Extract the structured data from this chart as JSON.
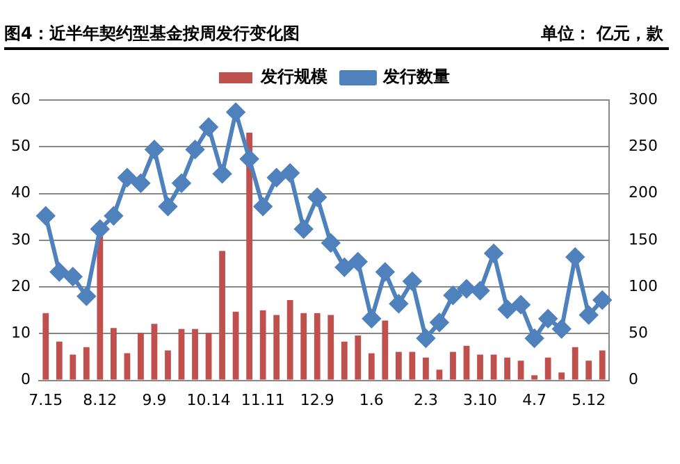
{
  "chart_data": {
    "type": "bar",
    "title": "图4：近半年契约型基金按周发行变化图",
    "subtitle": "单位： 亿元，款",
    "categories": [
      "7.15",
      null,
      null,
      null,
      "8.12",
      null,
      null,
      null,
      "9.9",
      null,
      null,
      null,
      "10.14",
      null,
      null,
      null,
      "11.11",
      null,
      null,
      null,
      "12.9",
      null,
      null,
      null,
      "1.6",
      null,
      null,
      null,
      "2.3",
      null,
      null,
      null,
      "3.10",
      null,
      null,
      null,
      "4.7",
      null,
      null,
      null,
      "5.12",
      null
    ],
    "series": [
      {
        "name": "发行规模",
        "color": "#c0504d",
        "values": [
          14.4,
          8.3,
          5.5,
          7.1,
          31.5,
          11.2,
          5.8,
          10.2,
          12.1,
          6.4,
          11.0,
          11.0,
          10.2,
          27.7,
          14.7,
          53.0,
          15.0,
          14.0,
          17.2,
          14.4,
          14.4,
          14.0,
          8.3,
          9.6,
          5.8,
          12.8,
          6.1,
          6.1,
          4.9,
          2.3,
          6.1,
          7.4,
          5.5,
          5.5,
          4.9,
          4.2,
          1.1,
          4.9,
          1.7,
          7.1,
          4.2,
          6.4
        ]
      },
      {
        "name": "发行数量",
        "type": "line",
        "axis": "y2",
        "color": "#4f81bd",
        "marker": "diamond",
        "values": [
          176,
          116,
          111,
          90,
          162,
          176,
          217,
          211,
          247,
          186,
          211,
          247,
          271,
          221,
          287,
          237,
          186,
          217,
          222,
          162,
          196,
          147,
          121,
          127,
          66,
          116,
          82,
          106,
          45,
          62,
          91,
          98,
          96,
          136,
          76,
          81,
          45,
          66,
          55,
          132,
          70,
          86
        ]
      }
    ],
    "ylim": [
      0,
      60
    ],
    "yticks": [
      0,
      10,
      20,
      30,
      40,
      50,
      60
    ],
    "y2lim": [
      0,
      300
    ],
    "y2ticks": [
      0,
      50,
      100,
      150,
      200,
      250,
      300
    ],
    "grid": "y",
    "legend": "top"
  }
}
